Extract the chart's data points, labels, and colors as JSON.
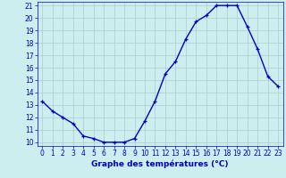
{
  "x": [
    0,
    1,
    2,
    3,
    4,
    5,
    6,
    7,
    8,
    9,
    10,
    11,
    12,
    13,
    14,
    15,
    16,
    17,
    18,
    19,
    20,
    21,
    22,
    23
  ],
  "y": [
    13.3,
    12.5,
    12.0,
    11.5,
    10.5,
    10.3,
    10.0,
    10.0,
    10.0,
    10.3,
    11.7,
    13.3,
    15.5,
    16.5,
    18.3,
    19.7,
    20.2,
    21.0,
    21.0,
    21.0,
    19.3,
    17.5,
    15.3,
    14.5
  ],
  "line_color": "#0000cc",
  "marker": "+",
  "marker_size": 3,
  "bg_color": "#cceeee",
  "grid_color": "#aacccc",
  "ylim": [
    10,
    21
  ],
  "xlim": [
    -0.5,
    23.5
  ],
  "yticks": [
    10,
    11,
    12,
    13,
    14,
    15,
    16,
    17,
    18,
    19,
    20,
    21
  ],
  "xticks": [
    0,
    1,
    2,
    3,
    4,
    5,
    6,
    7,
    8,
    9,
    10,
    11,
    12,
    13,
    14,
    15,
    16,
    17,
    18,
    19,
    20,
    21,
    22,
    23
  ],
  "xlabel": "Graphe des températures (°C)",
  "xlabel_color": "#0000cc",
  "tick_color": "#0000cc",
  "axis_label_fontsize": 6.5,
  "tick_fontsize": 5.5,
  "line_width": 1.0
}
